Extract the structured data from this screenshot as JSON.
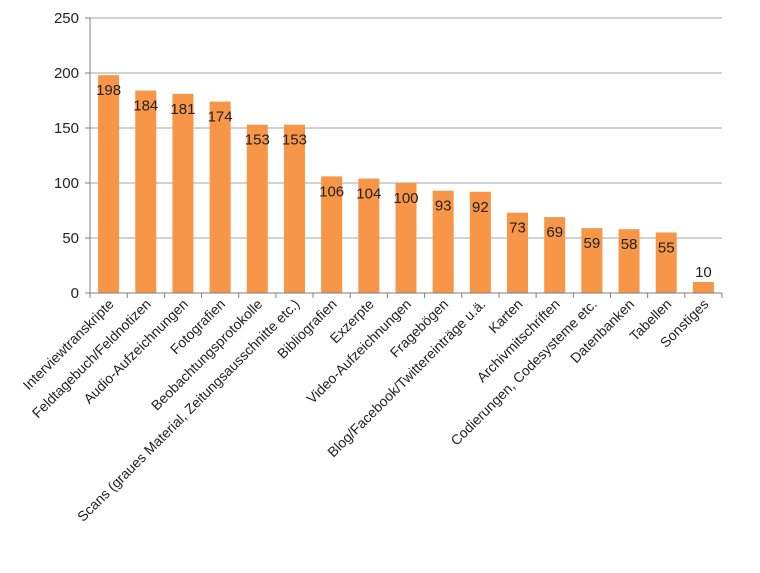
{
  "chart_data": {
    "type": "bar",
    "categories": [
      "Interviewtranskripte",
      "Feldtagebuch/Feldnotizen",
      "Audio-Aufzeichnungen",
      "Fotografien",
      "Beobachtungsprotokolle",
      "Scans (graues Material, Zeitungsausschnitte etc.)",
      "Bibliografien",
      "Exzerpte",
      "Video-Aufzeichnungen",
      "Fragebögen",
      "Blog/Facebook/Twittereinträge u.ä.",
      "Karten",
      "Archivmitschriften",
      "Codierungen, Codesysteme etc.",
      "Datenbanken",
      "Tabellen",
      "Sonstiges"
    ],
    "values": [
      198,
      184,
      181,
      174,
      153,
      153,
      106,
      104,
      100,
      93,
      92,
      73,
      69,
      59,
      58,
      55,
      10
    ],
    "ylim": [
      0,
      250
    ],
    "yticks": [
      0,
      50,
      100,
      150,
      200,
      250
    ],
    "grid": true,
    "bar_color": "#F79646",
    "grid_color": "#A6A6A6",
    "axis_color": "#7F7F7F"
  }
}
